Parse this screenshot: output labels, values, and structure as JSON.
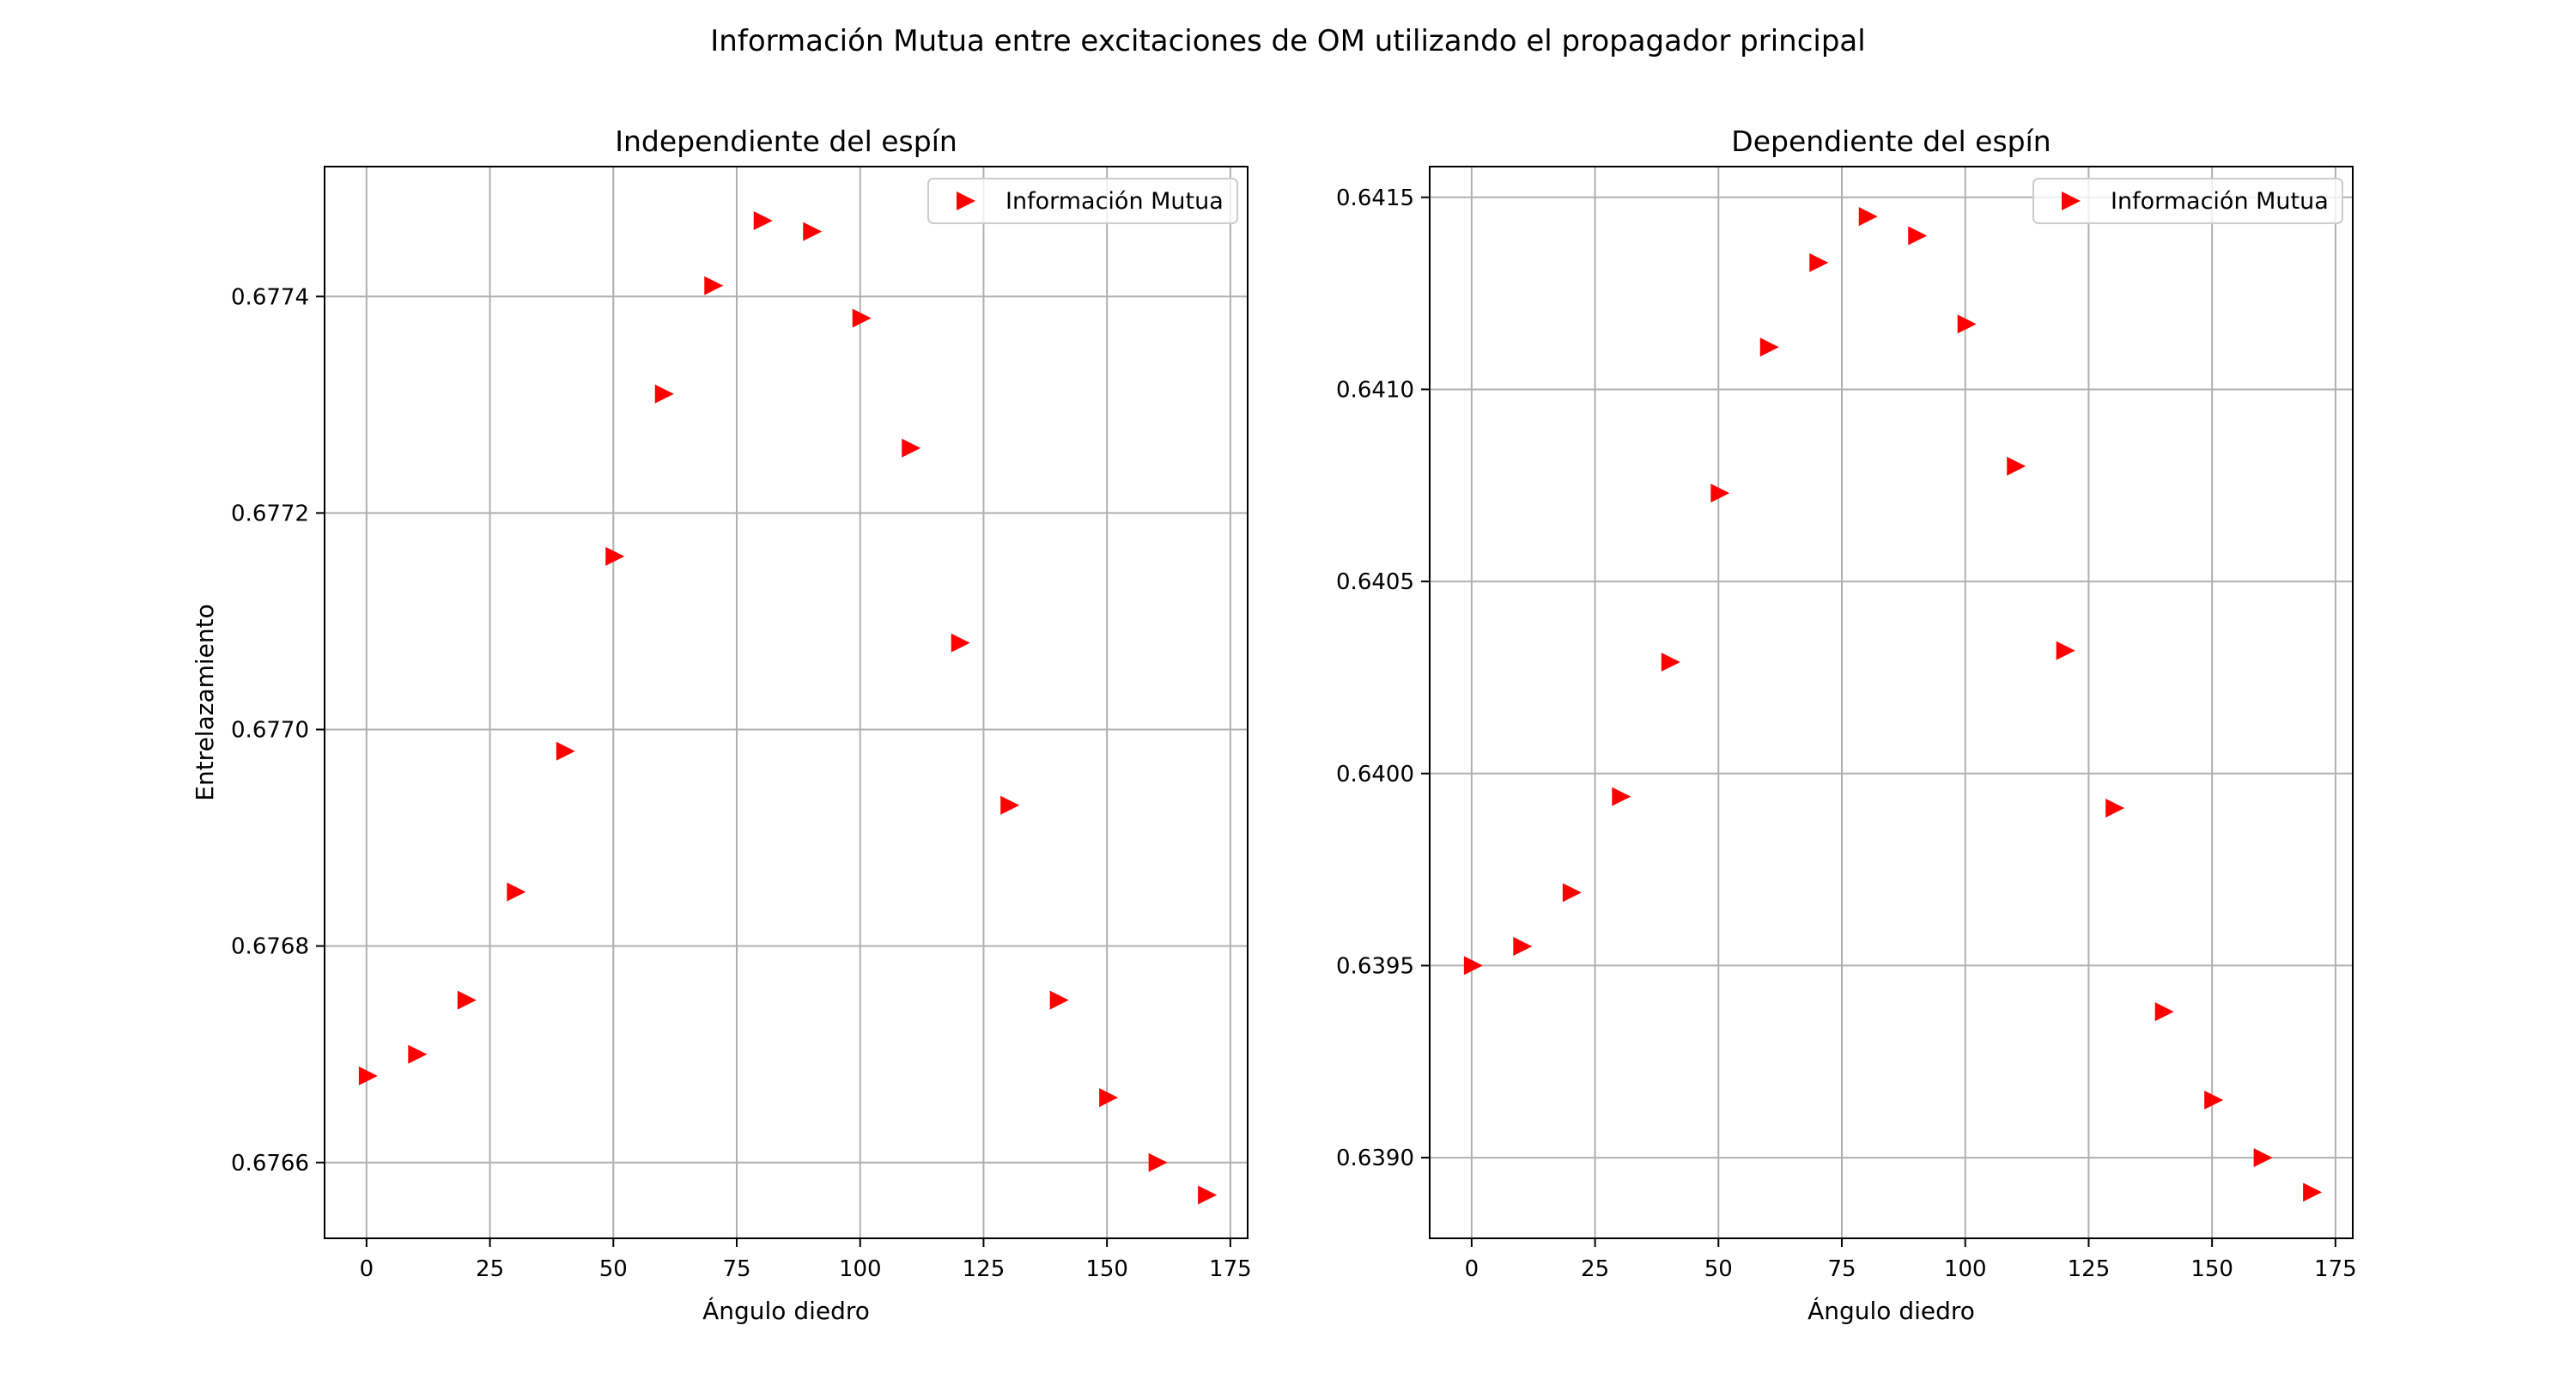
{
  "suptitle": "Información Mutua entre excitaciones de OM utilizando el propagador principal",
  "colors": {
    "marker": "#ff0000",
    "grid": "#b0b0b0",
    "axes": "#000000",
    "legend_border": "#cccccc"
  },
  "chart_data": [
    {
      "type": "scatter",
      "title": "Independiente del espín",
      "xlabel": "Ángulo diedro",
      "ylabel": "Entrelazamiento",
      "xlim": [
        -8.5,
        178.5
      ],
      "ylim": [
        0.67653,
        0.67752
      ],
      "xticks": [
        0,
        25,
        50,
        75,
        100,
        125,
        150,
        175
      ],
      "xtick_labels": [
        "0",
        "25",
        "50",
        "75",
        "100",
        "125",
        "150",
        "175"
      ],
      "yticks": [
        0.6766,
        0.6768,
        0.677,
        0.6772,
        0.6774
      ],
      "ytick_labels": [
        "0.6766",
        "0.6768",
        "0.6770",
        "0.6772",
        "0.6774"
      ],
      "grid": true,
      "legend_position": "upper right",
      "marker": "triangle-right",
      "series": [
        {
          "name": "Información Mutua",
          "x": [
            0,
            10,
            20,
            30,
            40,
            50,
            60,
            70,
            80,
            90,
            100,
            110,
            120,
            130,
            140,
            150,
            160,
            170
          ],
          "y": [
            0.67668,
            0.6767,
            0.67675,
            0.67685,
            0.67698,
            0.67716,
            0.67731,
            0.67741,
            0.67747,
            0.67746,
            0.67738,
            0.67726,
            0.67708,
            0.67693,
            0.67675,
            0.67666,
            0.6766,
            0.67657
          ]
        }
      ]
    },
    {
      "type": "scatter",
      "title": "Dependiente del espín",
      "xlabel": "Ángulo diedro",
      "ylabel": "",
      "xlim": [
        -8.5,
        178.5
      ],
      "ylim": [
        0.63879,
        0.64158
      ],
      "xticks": [
        0,
        25,
        50,
        75,
        100,
        125,
        150,
        175
      ],
      "xtick_labels": [
        "0",
        "25",
        "50",
        "75",
        "100",
        "125",
        "150",
        "175"
      ],
      "yticks": [
        0.639,
        0.6395,
        0.64,
        0.6405,
        0.641,
        0.6415
      ],
      "ytick_labels": [
        "0.6390",
        "0.6395",
        "0.6400",
        "0.6405",
        "0.6410",
        "0.6415"
      ],
      "grid": true,
      "legend_position": "upper right",
      "marker": "triangle-right",
      "series": [
        {
          "name": "Información Mutua",
          "x": [
            0,
            10,
            20,
            30,
            40,
            50,
            60,
            70,
            80,
            90,
            100,
            110,
            120,
            130,
            140,
            150,
            160,
            170
          ],
          "y": [
            0.6395,
            0.63955,
            0.63969,
            0.63994,
            0.64029,
            0.64073,
            0.64111,
            0.64133,
            0.64145,
            0.6414,
            0.64117,
            0.6408,
            0.64032,
            0.63991,
            0.63938,
            0.63915,
            0.639,
            0.63891
          ]
        }
      ]
    }
  ]
}
